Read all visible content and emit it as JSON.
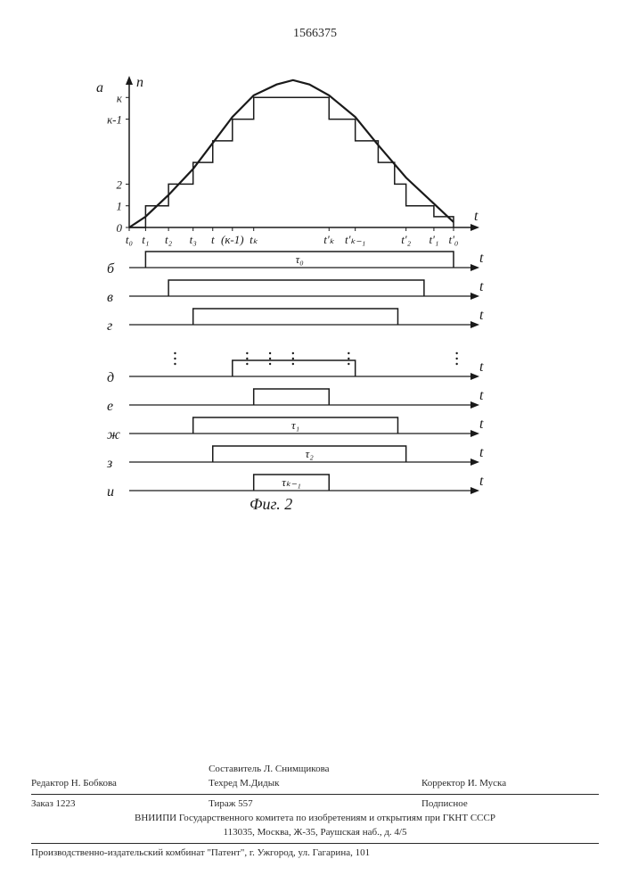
{
  "page_number": "1566375",
  "figure": {
    "caption": "Фиг. 2",
    "stroke": "#1a1a1a",
    "chart_a": {
      "row_label": "а",
      "y_label": "n",
      "x_label": "t",
      "y_ticks": [
        "0",
        "1",
        "2",
        "к-1",
        "к"
      ],
      "y_tick_pos": [
        0,
        1,
        2,
        5,
        6
      ],
      "y_max_vis": 7,
      "x_ticks": [
        "t₀",
        "t₁",
        "t₂",
        "t₃",
        "t",
        "(к-1)",
        "tₖ",
        "t'ₖ",
        "t'ₖ₋₁",
        "t'₂",
        "t'₁",
        "t'₀"
      ],
      "x_tick_pos": [
        0,
        0.5,
        1.2,
        1.95,
        2.55,
        3.15,
        3.8,
        6.1,
        6.9,
        8.45,
        9.3,
        9.9
      ],
      "bell_points": [
        [
          0,
          0
        ],
        [
          0.5,
          0.5
        ],
        [
          1.2,
          1.5
        ],
        [
          1.95,
          2.7
        ],
        [
          2.55,
          3.9
        ],
        [
          3.15,
          5.1
        ],
        [
          3.8,
          6.1
        ],
        [
          4.5,
          6.6
        ],
        [
          5.0,
          6.8
        ],
        [
          5.5,
          6.6
        ],
        [
          6.1,
          6.1
        ],
        [
          6.9,
          5.1
        ],
        [
          7.6,
          3.8
        ],
        [
          8.45,
          2.3
        ],
        [
          9.3,
          1.1
        ],
        [
          9.9,
          0.25
        ]
      ],
      "stair_points": [
        [
          0,
          0
        ],
        [
          0.5,
          0
        ],
        [
          0.5,
          1
        ],
        [
          1.2,
          1
        ],
        [
          1.2,
          2
        ],
        [
          1.95,
          2
        ],
        [
          1.95,
          3
        ],
        [
          2.55,
          3
        ],
        [
          2.55,
          4
        ],
        [
          3.15,
          4
        ],
        [
          3.15,
          5
        ],
        [
          3.8,
          5
        ],
        [
          3.8,
          6
        ],
        [
          6.1,
          6
        ],
        [
          6.1,
          5
        ],
        [
          6.9,
          5
        ],
        [
          6.9,
          4
        ],
        [
          7.6,
          4
        ],
        [
          7.6,
          3
        ],
        [
          8.1,
          3
        ],
        [
          8.1,
          2
        ],
        [
          8.45,
          2
        ],
        [
          8.45,
          1
        ],
        [
          9.3,
          1
        ],
        [
          9.3,
          0.5
        ],
        [
          9.9,
          0.5
        ],
        [
          9.9,
          0
        ]
      ]
    },
    "rows": [
      {
        "label": "б",
        "pulse": [
          0.5,
          9.9
        ],
        "tau": "τ₀"
      },
      {
        "label": "в",
        "pulse": [
          1.2,
          9.0
        ],
        "tau": ""
      },
      {
        "label": "г",
        "pulse": [
          1.95,
          8.2
        ],
        "tau": ""
      },
      {
        "label": "…ellipsis…",
        "pulse": null
      },
      {
        "label": "д",
        "pulse": [
          3.15,
          6.9
        ],
        "tau": ""
      },
      {
        "label": "е",
        "pulse": [
          3.8,
          6.1
        ],
        "tau": ""
      },
      {
        "label": "ж",
        "pulse": [
          1.95,
          8.2
        ],
        "tau": "τ₁"
      },
      {
        "label": "з",
        "pulse": [
          2.55,
          8.45
        ],
        "tau": "τ₂"
      },
      {
        "label": "и",
        "pulse": [
          3.8,
          6.1
        ],
        "tau": "τₖ₋₁"
      }
    ],
    "row_x_label": "t"
  },
  "credits": {
    "row1": {
      "left": "",
      "mid": "Составитель Л. Снимщикова",
      "right": ""
    },
    "row2": {
      "left": "Редактор Н. Бобкова",
      "mid": "Техред М.Дидык",
      "right": "Корректор И. Муска"
    },
    "row3": {
      "left": "Заказ 1223",
      "mid": "Тираж 557",
      "right": "Подписное"
    },
    "line1": "ВНИИПИ Государственного комитета по изобретениям и открытиям при ГКНТ СССР",
    "line2": "113035, Москва, Ж-35, Раушская наб., д. 4/5",
    "line3": "Производственно-издательский комбинат \"Патент\", г. Ужгород, ул. Гагарина, 101"
  }
}
